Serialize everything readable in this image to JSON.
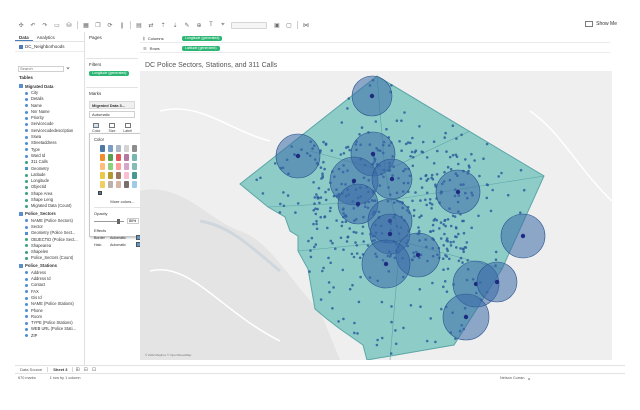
{
  "toolbar": {
    "icons": [
      "tableau-logo-icon",
      "undo-icon",
      "redo-icon",
      "save-icon",
      "datasource-icon",
      "sheet-icon",
      "refresh-icon",
      "pause-icon",
      "chart-icon",
      "sort-asc-icon",
      "sort-desc-icon",
      "highlight-icon",
      "group-icon",
      "label-icon",
      "fit-icon",
      "pin-icon",
      "presentation-icon",
      "share-icon"
    ],
    "show_me": "Show Me"
  },
  "data_pane": {
    "tab_data": "Data",
    "tab_analytics": "Analytics",
    "datasource": "DC_Neighborhoods",
    "search_placeholder": "Search",
    "tables_label": "Tables",
    "tables": [
      {
        "name": "Migrated Data",
        "fields": [
          {
            "name": "City",
            "kind": "dim"
          },
          {
            "name": "Details",
            "kind": "dim"
          },
          {
            "name": "Name",
            "kind": "dim"
          },
          {
            "name": "Nnr Name",
            "kind": "dim"
          },
          {
            "name": "Priority",
            "kind": "dim"
          },
          {
            "name": "Servicecode",
            "kind": "dim"
          },
          {
            "name": "Servicecodedescription",
            "kind": "dim"
          },
          {
            "name": "Sswa",
            "kind": "dim"
          },
          {
            "name": "Streetaddress",
            "kind": "dim"
          },
          {
            "name": "Type",
            "kind": "dim"
          },
          {
            "name": "Ward Id",
            "kind": "dim"
          },
          {
            "name": "311 Calls",
            "kind": "mea"
          },
          {
            "name": "Geometry",
            "kind": "geo"
          },
          {
            "name": "Latitude",
            "kind": "mea"
          },
          {
            "name": "Longitude",
            "kind": "mea"
          },
          {
            "name": "Objectid",
            "kind": "mea"
          },
          {
            "name": "Shape Area",
            "kind": "mea"
          },
          {
            "name": "Shape Leng",
            "kind": "mea"
          },
          {
            "name": "Migrated Data (Count)",
            "kind": "mea"
          }
        ]
      },
      {
        "name": "Police_Sectors",
        "fields": [
          {
            "name": "NAME (Police Sectors)",
            "kind": "dim"
          },
          {
            "name": "Sector",
            "kind": "dim"
          },
          {
            "name": "Geometry (Police Sect...",
            "kind": "geo"
          },
          {
            "name": "OBJECTID (Police Sect...",
            "kind": "mea"
          },
          {
            "name": "Shapearea",
            "kind": "mea"
          },
          {
            "name": "Shapelen",
            "kind": "mea"
          },
          {
            "name": "Police_Sectors (Count)",
            "kind": "mea"
          }
        ]
      },
      {
        "name": "Police_Stations",
        "fields": [
          {
            "name": "Address",
            "kind": "dim"
          },
          {
            "name": "Address Id",
            "kind": "dim"
          },
          {
            "name": "Contact",
            "kind": "dim"
          },
          {
            "name": "FAX",
            "kind": "dim"
          },
          {
            "name": "Gis Id",
            "kind": "dim"
          },
          {
            "name": "NAME (Police Stations)",
            "kind": "dim"
          },
          {
            "name": "Phone",
            "kind": "dim"
          },
          {
            "name": "Room",
            "kind": "dim"
          },
          {
            "name": "TYPE (Police Stations)",
            "kind": "dim"
          },
          {
            "name": "WEB URL (Police Stati...",
            "kind": "dim"
          },
          {
            "name": "ZIP",
            "kind": "dim"
          }
        ]
      }
    ]
  },
  "pages": {
    "title": "Pages"
  },
  "filters": {
    "title": "Filters",
    "pill": "Longitude (generated)"
  },
  "marks": {
    "title": "Marks",
    "layer": "Migrated Data 3...",
    "type": "Automatic",
    "cards": [
      {
        "label": "Color",
        "icon": "color-card-icon",
        "active": true
      },
      {
        "label": "Size",
        "icon": "size-card-icon",
        "active": false
      },
      {
        "label": "Label",
        "icon": "label-card-icon",
        "active": false
      }
    ]
  },
  "color_popup": {
    "title": "Color",
    "swatches": [
      "#4e79a7",
      "#7b9cc4",
      "#aab7c4",
      "#d3d3d3",
      "#8d8d8d",
      "#f28e2b",
      "#59a14f",
      "#e15759",
      "#b07aa1",
      "#76b7b2",
      "#ffbe7d",
      "#8cd17d",
      "#ff9d9a",
      "#d4a6c8",
      "#86bcb6",
      "#edc948",
      "#b6992d",
      "#9d7660",
      "#fabfd2",
      "#499894",
      "#f1ce63",
      "#bab0ac",
      "#d7b5a6",
      "#79706e",
      "#a0cbe8"
    ],
    "more_colors": "More colors...",
    "opacity_label": "Opacity",
    "opacity_value": "80%",
    "opacity_fraction": 0.8,
    "effects_label": "Effects",
    "border_label": "Border",
    "border_value": "Automatic",
    "halo_label": "Halo",
    "halo_value": "Automatic"
  },
  "shelves": {
    "columns_label": "Columns",
    "columns_pill": "Longitude (generated)",
    "rows_label": "Rows",
    "rows_pill": "Latitude (generated)"
  },
  "view": {
    "title": "DC Police Sectors, Stations, and 311 Calls",
    "attribution": "© 2022 Mapbox  © OpenStreetMap"
  },
  "bottom": {
    "tab_datasource": "Data Source",
    "tab_sheet": "Sheet 3",
    "status_left": "670 marks",
    "status_mid": "1 row by 1 column",
    "status_right_1": "Nelson Curran",
    "status_right_2": "▸"
  },
  "colors": {
    "sector_fill": "#7cc6c1",
    "sector_stroke": "#5aa6a6",
    "point": "#2f5d9e",
    "circle": "#3b6aa8",
    "station": "#1d2a80"
  }
}
